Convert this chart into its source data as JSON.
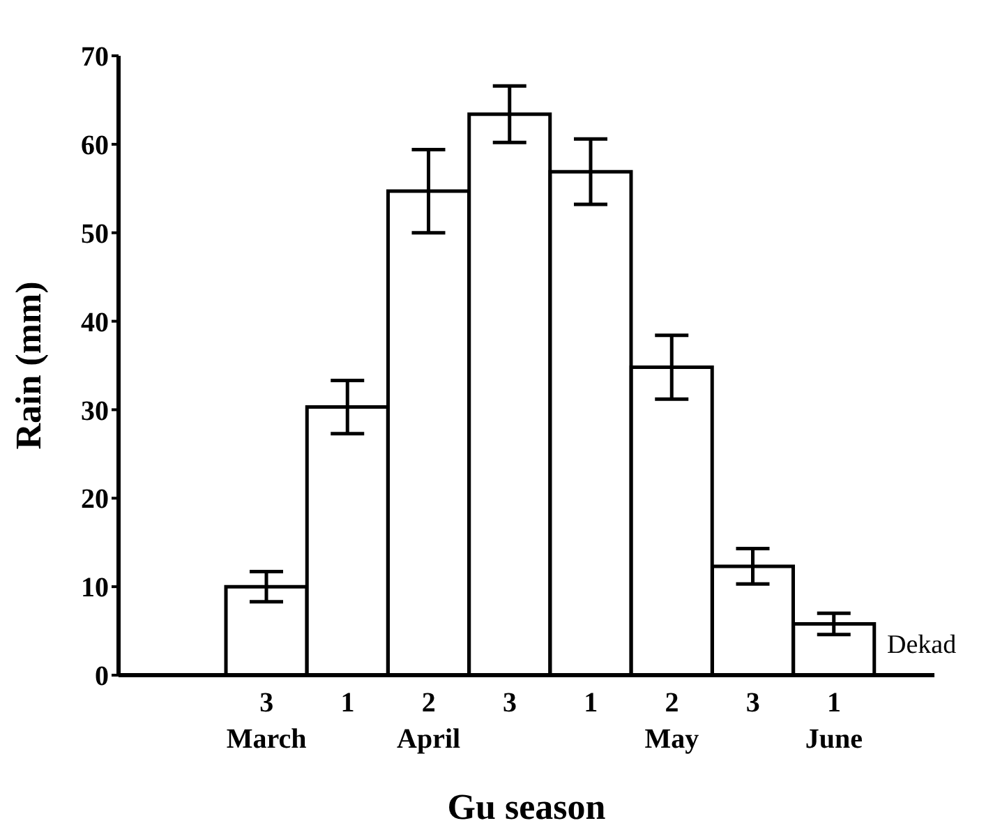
{
  "chart_data": {
    "type": "bar",
    "xlabel": "Gu season",
    "ylabel": "Rain (mm)",
    "categories": [
      "3\nMarch",
      "1",
      "2\nApril",
      "3",
      "1",
      "2\nMay",
      "3",
      "1\nJune"
    ],
    "values": [
      10.0,
      30.3,
      54.7,
      63.4,
      56.9,
      34.8,
      12.3,
      5.8
    ],
    "errors": [
      1.7,
      3.0,
      4.7,
      3.2,
      3.7,
      3.6,
      2.0,
      1.2
    ],
    "color": "#ffffff",
    "ylim": [
      0,
      70
    ],
    "yticks": [
      0,
      10,
      20,
      30,
      40,
      50,
      60,
      70
    ],
    "annotations": [
      "Dekad"
    ]
  }
}
